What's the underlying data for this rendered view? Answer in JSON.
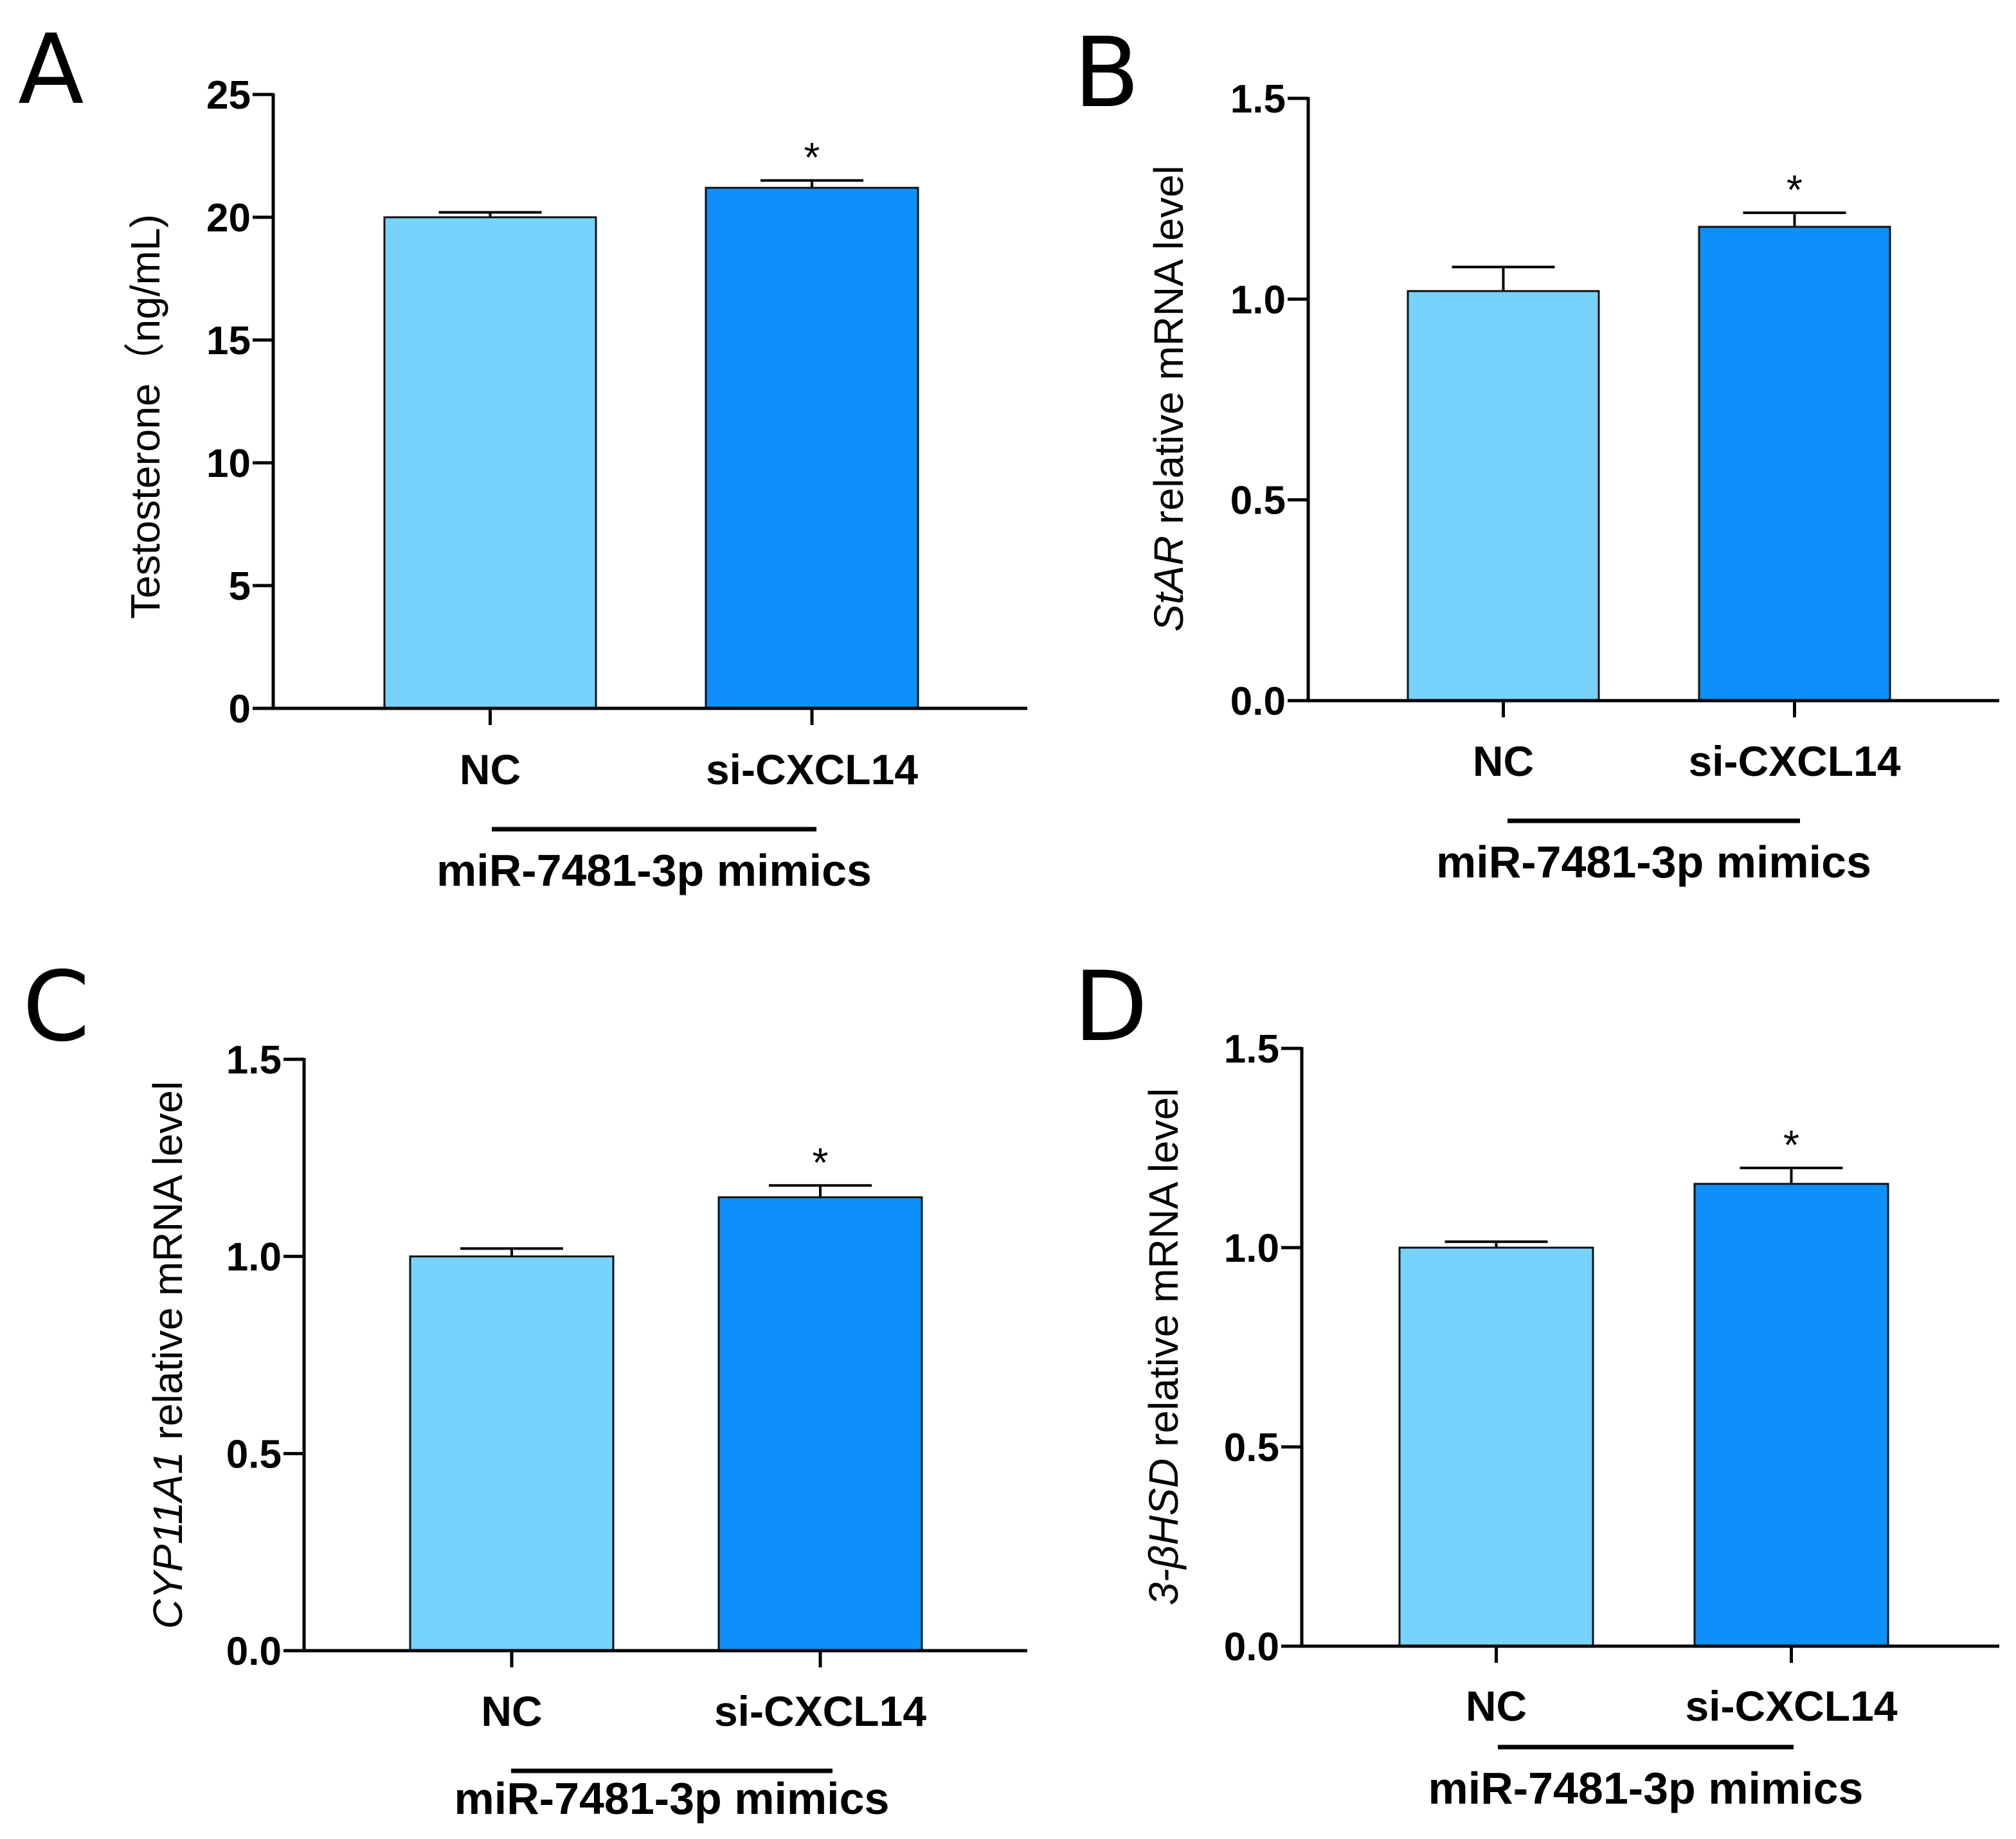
{
  "chart_data": [
    {
      "panel": "A",
      "type": "bar",
      "ylabel_italic": "",
      "ylabel_rest": "Testosterone（ng/mL)",
      "ylim": [
        0,
        25
      ],
      "yticks": [
        0,
        5,
        10,
        15,
        20,
        25
      ],
      "ytick_labels": [
        "0",
        "5",
        "10",
        "15",
        "20",
        "25"
      ],
      "categories": [
        "NC",
        "si-CXCL14"
      ],
      "values": [
        20.0,
        21.2
      ],
      "errors": [
        0.2,
        0.3
      ],
      "significance": [
        "",
        "*"
      ],
      "group_label": "miR-7481-3p mimics",
      "colors": [
        "#77d3fc",
        "#0d90fa"
      ]
    },
    {
      "panel": "B",
      "type": "bar",
      "ylabel_italic": "StAR",
      "ylabel_rest": " relative mRNA level",
      "ylim": [
        0,
        1.5
      ],
      "yticks": [
        0,
        0.5,
        1.0,
        1.5
      ],
      "ytick_labels": [
        "0.0",
        "0.5",
        "1.0",
        "1.5"
      ],
      "categories": [
        "NC",
        "si-CXCL14"
      ],
      "values": [
        1.02,
        1.18
      ],
      "errors": [
        0.06,
        0.035
      ],
      "significance": [
        "",
        "*"
      ],
      "group_label": "miR-7481-3p mimics",
      "colors": [
        "#77d3fc",
        "#0d90fa"
      ]
    },
    {
      "panel": "C",
      "type": "bar",
      "ylabel_italic": "CYP11A1",
      "ylabel_rest": " relative mRNA level",
      "ylim": [
        0,
        1.5
      ],
      "yticks": [
        0,
        0.5,
        1.0,
        1.5
      ],
      "ytick_labels": [
        "0.0",
        "0.5",
        "1.0",
        "1.5"
      ],
      "categories": [
        "NC",
        "si-CXCL14"
      ],
      "values": [
        1.0,
        1.15
      ],
      "errors": [
        0.02,
        0.03
      ],
      "significance": [
        "",
        "*"
      ],
      "group_label": "miR-7481-3p mimics",
      "colors": [
        "#77d3fc",
        "#0d90fa"
      ]
    },
    {
      "panel": "D",
      "type": "bar",
      "ylabel_italic": "3-βHSD",
      "ylabel_rest": " relative mRNA level",
      "ylim": [
        0,
        1.5
      ],
      "yticks": [
        0,
        0.5,
        1.0,
        1.5
      ],
      "ytick_labels": [
        "0.0",
        "0.5",
        "1.0",
        "1.5"
      ],
      "categories": [
        "NC",
        "si-CXCL14"
      ],
      "values": [
        1.0,
        1.16
      ],
      "errors": [
        0.015,
        0.04
      ],
      "significance": [
        "",
        "*"
      ],
      "group_label": "miR-7481-3p mimics",
      "colors": [
        "#77d3fc",
        "#0d90fa"
      ]
    }
  ]
}
